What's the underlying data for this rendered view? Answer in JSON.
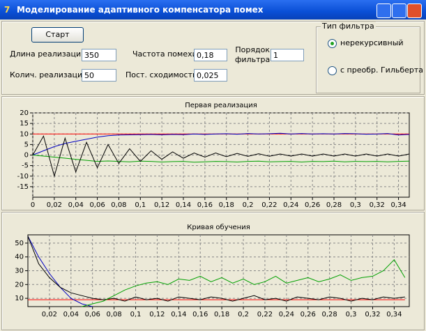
{
  "window": {
    "title": "Моделирование адаптивного компенсатора помех"
  },
  "form": {
    "start_button": "Старт",
    "fields": [
      {
        "label": "Длина реализации",
        "value": "350"
      },
      {
        "label": "Колич. реализаций",
        "value": "50"
      },
      {
        "label": "Частота помехи",
        "value": "0,18"
      },
      {
        "label": "Пост. сходимости",
        "value": "0,025"
      },
      {
        "label": "Порядок фильтра",
        "value": "1"
      }
    ]
  },
  "filter_group": {
    "title": "Тип фильтра",
    "options": [
      "нерекурсивный",
      "с преобр. Гильберта"
    ],
    "selected": 0
  },
  "chart_data": [
    {
      "type": "line",
      "title": "Первая реализация",
      "x": [
        0,
        0.01,
        0.02,
        0.03,
        0.04,
        0.05,
        0.06,
        0.07,
        0.08,
        0.09,
        0.1,
        0.11,
        0.12,
        0.13,
        0.14,
        0.15,
        0.16,
        0.17,
        0.18,
        0.19,
        0.2,
        0.21,
        0.22,
        0.23,
        0.24,
        0.25,
        0.26,
        0.27,
        0.28,
        0.29,
        0.3,
        0.31,
        0.32,
        0.33,
        0.34,
        0.35
      ],
      "xlim": [
        0,
        0.35
      ],
      "ylim": [
        -20,
        20
      ],
      "xticks": [
        0,
        {
          "value": 0.02,
          "label": "0,02"
        },
        {
          "value": 0.04,
          "label": "0,04"
        },
        {
          "value": 0.06,
          "label": "0,06"
        },
        {
          "value": 0.08,
          "label": "0,08"
        },
        {
          "value": 0.1,
          "label": "0,1"
        },
        {
          "value": 0.12,
          "label": "0,12"
        },
        {
          "value": 0.14,
          "label": "0,14"
        },
        {
          "value": 0.16,
          "label": "0,16"
        },
        {
          "value": 0.18,
          "label": "0,18"
        },
        {
          "value": 0.2,
          "label": "0,2"
        },
        {
          "value": 0.22,
          "label": "0,22"
        },
        {
          "value": 0.24,
          "label": "0,24"
        },
        {
          "value": 0.26,
          "label": "0,26"
        },
        {
          "value": 0.28,
          "label": "0,28"
        },
        {
          "value": 0.3,
          "label": "0,3"
        },
        {
          "value": 0.32,
          "label": "0,32"
        },
        {
          "value": 0.34,
          "label": "0,34"
        }
      ],
      "yticks": [
        -15,
        -10,
        -5,
        0,
        5,
        10,
        15,
        20
      ],
      "grid": true,
      "series": [
        {
          "color": "#ff0000",
          "values": [
            10,
            10,
            10,
            10,
            10,
            10,
            10,
            10,
            10,
            10,
            10,
            10,
            10,
            10,
            10,
            10,
            10,
            10,
            10,
            10,
            10,
            10,
            10,
            10,
            10,
            10,
            10,
            10,
            10,
            10,
            10,
            10,
            10,
            10,
            10,
            10
          ]
        },
        {
          "color": "#0000c0",
          "values": [
            0,
            2,
            4,
            5.5,
            6.5,
            7.5,
            8.5,
            9.2,
            9.5,
            9.6,
            9.7,
            9.8,
            9.6,
            9.8,
            9.7,
            10,
            9.8,
            10,
            10.1,
            9.9,
            10.2,
            10,
            10.1,
            10.3,
            10,
            10.2,
            10,
            10.1,
            10,
            10.2,
            10.1,
            9.9,
            10,
            10.2,
            9.5,
            9.8
          ]
        },
        {
          "color": "#00a000",
          "values": [
            0,
            -0.5,
            -1,
            -1.5,
            -2,
            -2.5,
            -3,
            -2.8,
            -3,
            -3.2,
            -2.9,
            -3,
            -3.3,
            -3.1,
            -3,
            -3.4,
            -3.2,
            -3,
            -3.1,
            -3.3,
            -3,
            -2.9,
            -3.2,
            -3.1,
            -3,
            -3.3,
            -3,
            -3.1,
            -2.9,
            -3.2,
            -3,
            -3.1,
            -3,
            -3.2,
            -3,
            -2.9
          ]
        },
        {
          "color": "#000000",
          "values": [
            0,
            9,
            -10,
            8,
            -8,
            6,
            -6,
            5,
            -4,
            3,
            -3,
            2,
            -2,
            1.5,
            -1.5,
            1,
            -1,
            1,
            -0.8,
            0.8,
            -0.6,
            0.6,
            -0.6,
            0.5,
            -0.5,
            0.5,
            -0.5,
            0.5,
            -0.5,
            0.5,
            -0.5,
            0.5,
            -0.5,
            0.5,
            -0.5,
            0.5
          ]
        }
      ]
    },
    {
      "type": "line",
      "title": "Кривая обучения",
      "x": [
        0,
        0.01,
        0.02,
        0.03,
        0.04,
        0.05,
        0.06,
        0.07,
        0.08,
        0.09,
        0.1,
        0.11,
        0.12,
        0.13,
        0.14,
        0.15,
        0.16,
        0.17,
        0.18,
        0.19,
        0.2,
        0.21,
        0.22,
        0.23,
        0.24,
        0.25,
        0.26,
        0.27,
        0.28,
        0.29,
        0.3,
        0.31,
        0.32,
        0.33,
        0.34,
        0.35
      ],
      "xlim": [
        0,
        0.354
      ],
      "ylim": [
        4,
        56
      ],
      "xticks": [
        {
          "value": 0.02,
          "label": "0,02"
        },
        {
          "value": 0.04,
          "label": "0,04"
        },
        {
          "value": 0.06,
          "label": "0,06"
        },
        {
          "value": 0.08,
          "label": "0,08"
        },
        {
          "value": 0.1,
          "label": "0,1"
        },
        {
          "value": 0.12,
          "label": "0,12"
        },
        {
          "value": 0.14,
          "label": "0,14"
        },
        {
          "value": 0.16,
          "label": "0,16"
        },
        {
          "value": 0.18,
          "label": "0,18"
        },
        {
          "value": 0.2,
          "label": "0,2"
        },
        {
          "value": 0.22,
          "label": "0,22"
        },
        {
          "value": 0.24,
          "label": "0,24"
        },
        {
          "value": 0.26,
          "label": "0,26"
        },
        {
          "value": 0.28,
          "label": "0,28"
        },
        {
          "value": 0.3,
          "label": "0,3"
        },
        {
          "value": 0.32,
          "label": "0,32"
        },
        {
          "value": 0.34,
          "label": "0,34"
        }
      ],
      "yticks": [
        10,
        20,
        30,
        40,
        50
      ],
      "grid": true,
      "series": [
        {
          "color": "#ff0000",
          "values": [
            9,
            9,
            9,
            9,
            9,
            9,
            9,
            9,
            9,
            9,
            9,
            9,
            9,
            9,
            9,
            9,
            9,
            9,
            9,
            9,
            9,
            9,
            9,
            9,
            9,
            9,
            9,
            9,
            9,
            9,
            9,
            9,
            9,
            9,
            9,
            9
          ]
        },
        {
          "color": "#0000c0",
          "values": [
            55,
            40,
            28,
            18,
            10,
            6,
            4,
            null,
            null,
            null,
            null,
            null,
            null,
            null,
            null,
            null,
            null,
            null,
            null,
            null,
            null,
            null,
            null,
            null,
            null,
            null,
            null,
            null,
            null,
            null,
            null,
            null,
            null,
            null,
            null,
            null
          ]
        },
        {
          "color": "#000000",
          "values": [
            55,
            35,
            25,
            18,
            14,
            12,
            10,
            9,
            10,
            8,
            11,
            9,
            10,
            8,
            11,
            10,
            9,
            11,
            10,
            8,
            10,
            12,
            9,
            10,
            8,
            11,
            10,
            9,
            11,
            10,
            8,
            10,
            9,
            11,
            10,
            11
          ]
        },
        {
          "color": "#00a000",
          "values": [
            null,
            null,
            null,
            null,
            null,
            4,
            6,
            8,
            12,
            16,
            19,
            21,
            22,
            20,
            24,
            23,
            26,
            22,
            25,
            21,
            24,
            20,
            22,
            26,
            21,
            23,
            25,
            22,
            24,
            27,
            23,
            25,
            26,
            30,
            38,
            25
          ]
        }
      ]
    }
  ]
}
